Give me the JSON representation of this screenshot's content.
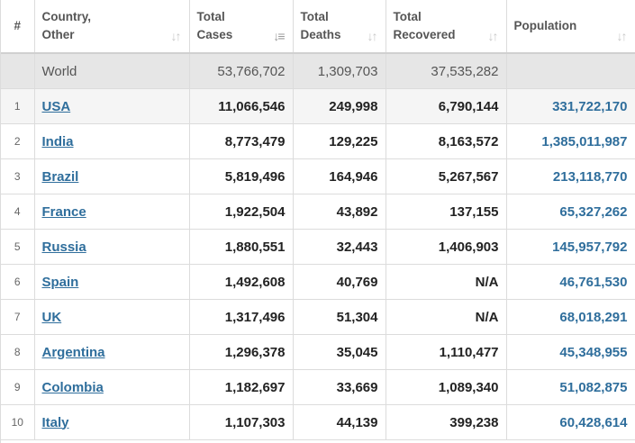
{
  "headers": {
    "idx": "#",
    "country_line1": "Country,",
    "country_line2": "Other",
    "cases_line1": "Total",
    "cases_line2": "Cases",
    "deaths_line1": "Total",
    "deaths_line2": "Deaths",
    "recovered_line1": "Total",
    "recovered_line2": "Recovered",
    "population": "Population"
  },
  "sort_icons": {
    "default": "↓↑",
    "active": "↓≡"
  },
  "world": {
    "country": "World",
    "cases": "53,766,702",
    "deaths": "1,309,703",
    "recovered": "37,535,282",
    "population": ""
  },
  "rows": [
    {
      "idx": "1",
      "country": "USA",
      "cases": "11,066,546",
      "deaths": "249,998",
      "recovered": "6,790,144",
      "population": "331,722,170"
    },
    {
      "idx": "2",
      "country": "India",
      "cases": "8,773,479",
      "deaths": "129,225",
      "recovered": "8,163,572",
      "population": "1,385,011,987"
    },
    {
      "idx": "3",
      "country": "Brazil",
      "cases": "5,819,496",
      "deaths": "164,946",
      "recovered": "5,267,567",
      "population": "213,118,770"
    },
    {
      "idx": "4",
      "country": "France",
      "cases": "1,922,504",
      "deaths": "43,892",
      "recovered": "137,155",
      "population": "65,327,262"
    },
    {
      "idx": "5",
      "country": "Russia",
      "cases": "1,880,551",
      "deaths": "32,443",
      "recovered": "1,406,903",
      "population": "145,957,792"
    },
    {
      "idx": "6",
      "country": "Spain",
      "cases": "1,492,608",
      "deaths": "40,769",
      "recovered": "N/A",
      "population": "46,761,530"
    },
    {
      "idx": "7",
      "country": "UK",
      "cases": "1,317,496",
      "deaths": "51,304",
      "recovered": "N/A",
      "population": "68,018,291"
    },
    {
      "idx": "8",
      "country": "Argentina",
      "cases": "1,296,378",
      "deaths": "35,045",
      "recovered": "1,110,477",
      "population": "45,348,955"
    },
    {
      "idx": "9",
      "country": "Colombia",
      "cases": "1,182,697",
      "deaths": "33,669",
      "recovered": "1,089,340",
      "population": "51,082,875"
    },
    {
      "idx": "10",
      "country": "Italy",
      "cases": "1,107,303",
      "deaths": "44,139",
      "recovered": "399,238",
      "population": "60,428,614"
    }
  ],
  "colors": {
    "link": "#2f6e9c",
    "world_bg": "#e6e6e6",
    "border": "#dcdcdc"
  }
}
